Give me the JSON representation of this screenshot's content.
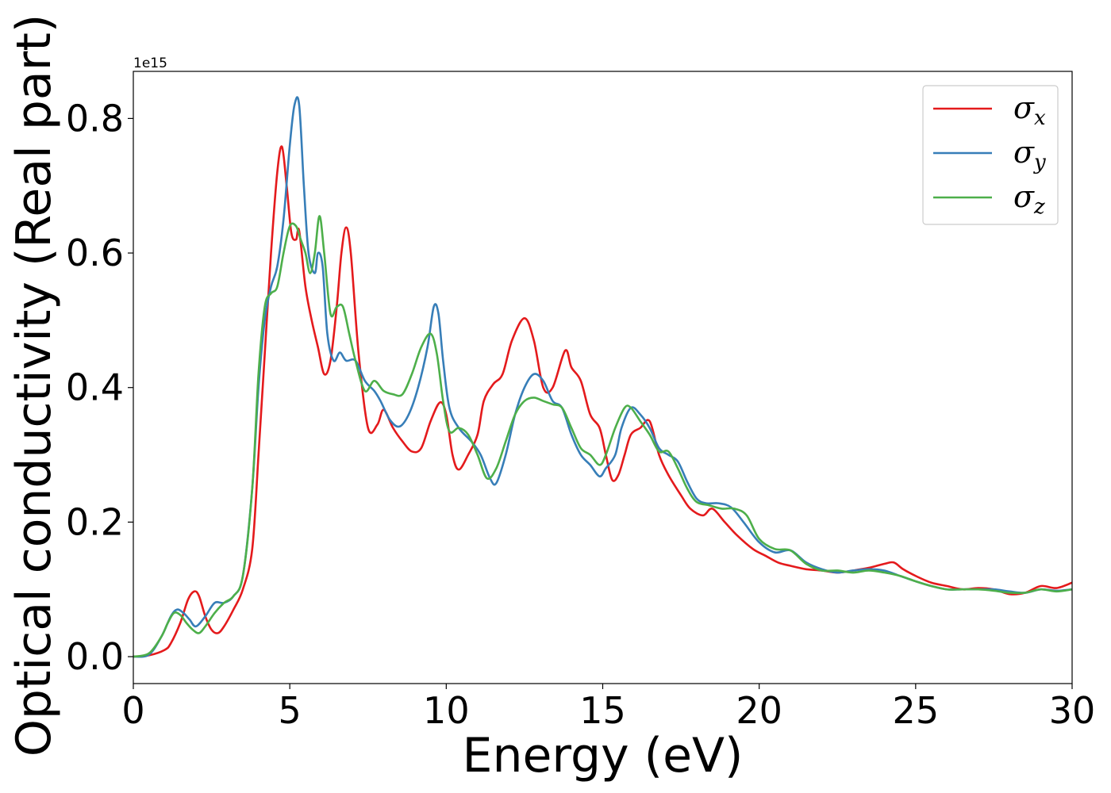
{
  "chart_data": {
    "type": "line",
    "xlabel": "Energy (eV)",
    "ylabel": "Optical conductivity (Real part)",
    "y_offset_label": "1e15",
    "xlim": [
      0,
      30
    ],
    "ylim": [
      -0.04,
      0.87
    ],
    "x_ticks": [
      0,
      5,
      10,
      15,
      20,
      25,
      30
    ],
    "x_tick_labels": [
      "0",
      "5",
      "10",
      "15",
      "20",
      "25",
      "30"
    ],
    "y_ticks": [
      0.0,
      0.2,
      0.4,
      0.6,
      0.8
    ],
    "y_tick_labels": [
      "0.0",
      "0.2",
      "0.4",
      "0.6",
      "0.8"
    ],
    "grid": false,
    "legend_position": "top-right",
    "series": [
      {
        "name": "σx",
        "symbol": "σ",
        "subscript": "x",
        "color": "#e41a1c",
        "x": [
          0,
          0.5,
          1,
          1.2,
          1.5,
          1.75,
          1.95,
          2.1,
          2.3,
          2.5,
          2.7,
          2.9,
          3.2,
          3.5,
          3.8,
          4,
          4.2,
          4.4,
          4.6,
          4.75,
          4.9,
          5.05,
          5.2,
          5.3,
          5.5,
          5.7,
          5.9,
          6.1,
          6.3,
          6.5,
          6.65,
          6.8,
          6.95,
          7.2,
          7.5,
          7.8,
          8,
          8.3,
          8.6,
          8.9,
          9.2,
          9.5,
          9.8,
          10,
          10.2,
          10.4,
          10.7,
          11,
          11.2,
          11.5,
          11.8,
          12.1,
          12.5,
          12.8,
          13.1,
          13.4,
          13.8,
          14,
          14.3,
          14.6,
          14.9,
          15.1,
          15.3,
          15.5,
          15.7,
          15.9,
          16.2,
          16.5,
          16.8,
          17.1,
          17.5,
          17.8,
          18.2,
          18.5,
          18.9,
          19.3,
          19.8,
          20.2,
          20.6,
          21,
          21.5,
          22,
          22.5,
          23,
          23.5,
          24,
          24.3,
          24.6,
          25,
          25.5,
          26,
          26.5,
          27,
          27.5,
          28,
          28.5,
          29,
          29.5,
          30
        ],
        "y": [
          0.0,
          0.002,
          0.01,
          0.02,
          0.05,
          0.085,
          0.097,
          0.09,
          0.06,
          0.04,
          0.035,
          0.045,
          0.07,
          0.1,
          0.16,
          0.3,
          0.45,
          0.6,
          0.72,
          0.758,
          0.7,
          0.63,
          0.62,
          0.633,
          0.55,
          0.5,
          0.46,
          0.42,
          0.44,
          0.52,
          0.6,
          0.638,
          0.6,
          0.45,
          0.34,
          0.345,
          0.367,
          0.34,
          0.32,
          0.305,
          0.31,
          0.35,
          0.378,
          0.36,
          0.3,
          0.278,
          0.3,
          0.33,
          0.38,
          0.405,
          0.42,
          0.47,
          0.503,
          0.47,
          0.4,
          0.4,
          0.455,
          0.43,
          0.41,
          0.36,
          0.34,
          0.3,
          0.263,
          0.27,
          0.3,
          0.33,
          0.34,
          0.35,
          0.3,
          0.27,
          0.24,
          0.22,
          0.21,
          0.22,
          0.2,
          0.18,
          0.16,
          0.15,
          0.14,
          0.135,
          0.13,
          0.128,
          0.125,
          0.128,
          0.132,
          0.138,
          0.14,
          0.13,
          0.12,
          0.11,
          0.105,
          0.1,
          0.102,
          0.1,
          0.093,
          0.095,
          0.105,
          0.102,
          0.11
        ]
      },
      {
        "name": "σy",
        "symbol": "σ",
        "subscript": "y",
        "color": "#377eb8",
        "x": [
          0,
          0.5,
          0.9,
          1.2,
          1.4,
          1.6,
          1.8,
          2,
          2.3,
          2.6,
          2.9,
          3.2,
          3.5,
          3.8,
          4,
          4.2,
          4.4,
          4.6,
          4.8,
          5,
          5.15,
          5.3,
          5.45,
          5.6,
          5.8,
          5.9,
          6.05,
          6.2,
          6.4,
          6.6,
          6.8,
          7.1,
          7.4,
          7.7,
          7.9,
          8.2,
          8.5,
          8.8,
          9.1,
          9.4,
          9.6,
          9.75,
          9.9,
          10.1,
          10.4,
          10.8,
          11.1,
          11.4,
          11.6,
          11.9,
          12.2,
          12.5,
          12.8,
          13.1,
          13.4,
          13.7,
          14,
          14.3,
          14.6,
          14.9,
          15.1,
          15.4,
          15.6,
          15.9,
          16.2,
          16.5,
          16.8,
          17.1,
          17.4,
          17.7,
          18,
          18.3,
          18.7,
          19.1,
          19.5,
          20,
          20.5,
          21,
          21.5,
          22,
          22.5,
          23,
          23.5,
          24,
          24.5,
          25,
          25.5,
          26,
          26.5,
          27,
          27.5,
          28,
          28.5,
          29,
          29.5,
          30
        ],
        "y": [
          0.0,
          0.003,
          0.03,
          0.06,
          0.07,
          0.065,
          0.055,
          0.045,
          0.06,
          0.08,
          0.08,
          0.09,
          0.12,
          0.25,
          0.4,
          0.5,
          0.55,
          0.58,
          0.65,
          0.76,
          0.82,
          0.82,
          0.7,
          0.6,
          0.57,
          0.6,
          0.58,
          0.48,
          0.44,
          0.452,
          0.44,
          0.44,
          0.41,
          0.395,
          0.38,
          0.352,
          0.342,
          0.36,
          0.4,
          0.46,
          0.52,
          0.51,
          0.44,
          0.37,
          0.34,
          0.32,
          0.3,
          0.265,
          0.258,
          0.3,
          0.36,
          0.4,
          0.42,
          0.41,
          0.38,
          0.37,
          0.33,
          0.3,
          0.285,
          0.268,
          0.28,
          0.3,
          0.34,
          0.37,
          0.36,
          0.34,
          0.31,
          0.3,
          0.29,
          0.26,
          0.235,
          0.228,
          0.228,
          0.222,
          0.2,
          0.17,
          0.155,
          0.158,
          0.14,
          0.13,
          0.125,
          0.128,
          0.13,
          0.128,
          0.12,
          0.112,
          0.105,
          0.1,
          0.1,
          0.1,
          0.1,
          0.097,
          0.095,
          0.1,
          0.098,
          0.1
        ]
      },
      {
        "name": "σz",
        "symbol": "σ",
        "subscript": "z",
        "color": "#4daf4a",
        "x": [
          0,
          0.5,
          0.9,
          1.1,
          1.3,
          1.5,
          1.7,
          1.9,
          2.1,
          2.3,
          2.6,
          2.9,
          3.2,
          3.5,
          3.8,
          4,
          4.2,
          4.4,
          4.6,
          4.8,
          5,
          5.2,
          5.35,
          5.5,
          5.65,
          5.8,
          5.95,
          6.1,
          6.3,
          6.5,
          6.7,
          6.9,
          7.1,
          7.4,
          7.7,
          8,
          8.3,
          8.6,
          8.9,
          9.2,
          9.5,
          9.7,
          9.9,
          10.1,
          10.4,
          10.7,
          11,
          11.3,
          11.6,
          11.9,
          12.2,
          12.5,
          12.8,
          13.1,
          13.4,
          13.7,
          14,
          14.3,
          14.6,
          14.9,
          15.1,
          15.4,
          15.7,
          15.9,
          16.2,
          16.5,
          16.8,
          17.1,
          17.4,
          17.7,
          18,
          18.4,
          18.8,
          19.2,
          19.6,
          20,
          20.5,
          21,
          21.5,
          22,
          22.5,
          23,
          23.5,
          24,
          24.5,
          25,
          25.5,
          26,
          26.5,
          27,
          27.5,
          28,
          28.5,
          29,
          29.5,
          30
        ],
        "y": [
          0.0,
          0.005,
          0.03,
          0.05,
          0.065,
          0.062,
          0.05,
          0.04,
          0.035,
          0.045,
          0.065,
          0.08,
          0.09,
          0.12,
          0.25,
          0.42,
          0.52,
          0.54,
          0.55,
          0.6,
          0.64,
          0.64,
          0.62,
          0.6,
          0.57,
          0.6,
          0.655,
          0.6,
          0.51,
          0.52,
          0.52,
          0.48,
          0.44,
          0.395,
          0.41,
          0.395,
          0.39,
          0.39,
          0.42,
          0.46,
          0.48,
          0.45,
          0.38,
          0.335,
          0.34,
          0.33,
          0.3,
          0.265,
          0.28,
          0.32,
          0.36,
          0.38,
          0.385,
          0.38,
          0.375,
          0.37,
          0.34,
          0.31,
          0.3,
          0.285,
          0.3,
          0.34,
          0.37,
          0.37,
          0.35,
          0.33,
          0.305,
          0.305,
          0.28,
          0.25,
          0.23,
          0.225,
          0.22,
          0.22,
          0.21,
          0.175,
          0.16,
          0.158,
          0.138,
          0.128,
          0.128,
          0.125,
          0.128,
          0.125,
          0.12,
          0.112,
          0.105,
          0.1,
          0.1,
          0.1,
          0.098,
          0.095,
          0.095,
          0.1,
          0.097,
          0.1
        ]
      }
    ]
  }
}
